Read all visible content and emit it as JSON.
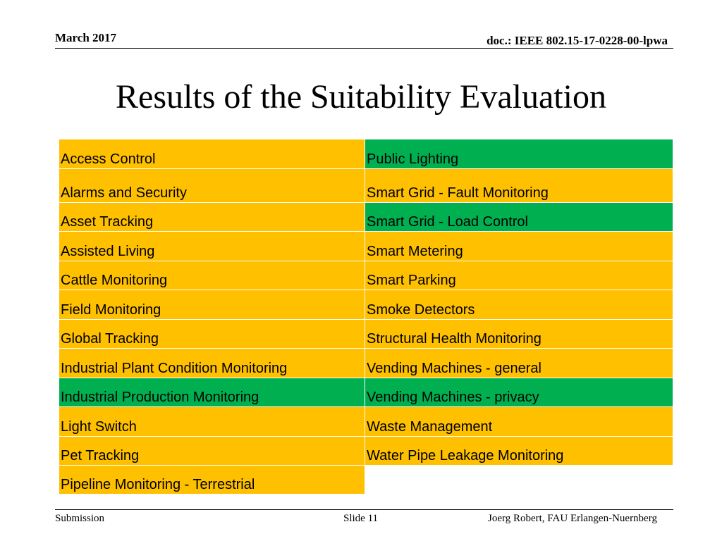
{
  "header": {
    "date": "March 2017",
    "doc": "doc.: IEEE 802.15-17-0228-00-lpwa"
  },
  "title": "Results of the Suitability Evaluation",
  "colors": {
    "yellow": "#ffc000",
    "green": "#00b050"
  },
  "table": {
    "left": [
      {
        "text": "Access Control",
        "status": "yellow"
      },
      {
        "text": "Alarms and Security",
        "status": "yellow"
      },
      {
        "text": "Asset Tracking",
        "status": "yellow"
      },
      {
        "text": "Assisted Living",
        "status": "yellow"
      },
      {
        "text": "Cattle Monitoring",
        "status": "yellow"
      },
      {
        "text": "Field Monitoring",
        "status": "yellow"
      },
      {
        "text": "Global Tracking",
        "status": "yellow"
      },
      {
        "text": "Industrial Plant Condition Monitoring",
        "status": "yellow"
      },
      {
        "text": "Industrial Production Monitoring",
        "status": "green"
      },
      {
        "text": "Light Switch",
        "status": "yellow"
      },
      {
        "text": "Pet Tracking",
        "status": "yellow"
      },
      {
        "text": "Pipeline Monitoring - Terrestrial",
        "status": "yellow"
      }
    ],
    "right": [
      {
        "text": "Public Lighting",
        "status": "green"
      },
      {
        "text": "Smart Grid - Fault Monitoring",
        "status": "yellow"
      },
      {
        "text": "Smart Grid - Load Control",
        "status": "green"
      },
      {
        "text": "Smart Metering",
        "status": "yellow"
      },
      {
        "text": "Smart Parking",
        "status": "yellow"
      },
      {
        "text": "Smoke Detectors",
        "status": "yellow"
      },
      {
        "text": "Structural Health Monitoring",
        "status": "yellow"
      },
      {
        "text": "Vending Machines - general",
        "status": "yellow"
      },
      {
        "text": "Vending Machines - privacy",
        "status": "green"
      },
      {
        "text": "Waste Management",
        "status": "yellow"
      },
      {
        "text": "Water Pipe Leakage Monitoring",
        "status": "yellow"
      }
    ]
  },
  "footer": {
    "left": "Submission",
    "center": "Slide 11",
    "right": "Joerg Robert, FAU Erlangen-Nuernberg"
  }
}
